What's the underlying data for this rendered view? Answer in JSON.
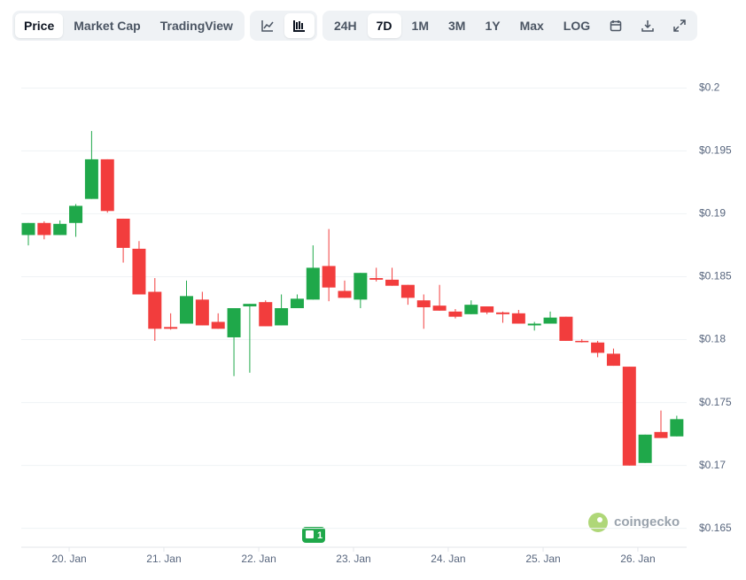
{
  "toolbar": {
    "views": [
      "Price",
      "Market Cap",
      "TradingView"
    ],
    "active_view": 0,
    "ranges": [
      "24H",
      "7D",
      "1M",
      "3M",
      "1Y",
      "Max",
      "LOG"
    ],
    "active_range": 1
  },
  "chart_data": {
    "type": "candlestick",
    "up_color": "#1fa84a",
    "down_color": "#f23d3d",
    "open": [
      0.18831,
      0.18927,
      0.18831,
      0.18927,
      0.19118,
      0.19433,
      0.18961,
      0.18722,
      0.1838,
      0.181,
      0.18127,
      0.18318,
      0.18141,
      0.18018,
      0.18264,
      0.18298,
      0.18113,
      0.1825,
      0.18318,
      0.18585,
      0.18387,
      0.18318,
      0.18489,
      0.18476,
      0.18435,
      0.18312,
      0.1827,
      0.18223,
      0.18202,
      0.18264,
      0.18216,
      0.18209,
      0.18113,
      0.18127,
      0.18182,
      0.1799,
      0.17977,
      0.17888,
      0.17785,
      0.1702,
      0.17266,
      0.17231
    ],
    "high": [
      0.18927,
      0.1894,
      0.18947,
      0.19077,
      0.19658,
      0.19433,
      0.18961,
      0.18783,
      0.18489,
      0.18209,
      0.18469,
      0.1838,
      0.18209,
      0.1825,
      0.18284,
      0.18312,
      0.18359,
      0.18359,
      0.18749,
      0.18879,
      0.18469,
      0.1853,
      0.18571,
      0.18571,
      0.18435,
      0.18359,
      0.18435,
      0.18243,
      0.18312,
      0.18264,
      0.18223,
      0.18236,
      0.18141,
      0.18223,
      0.18182,
      0.18004,
      0.1799,
      0.17929,
      0.17785,
      0.17245,
      0.17436,
      0.17395
    ],
    "low": [
      0.18749,
      0.18797,
      0.18831,
      0.18817,
      0.19118,
      0.19009,
      0.18612,
      0.18359,
      0.1799,
      0.18079,
      0.18127,
      0.18113,
      0.18086,
      0.1771,
      0.17737,
      0.18106,
      0.18113,
      0.1825,
      0.18318,
      0.18305,
      0.18332,
      0.1825,
      0.18462,
      0.18428,
      0.18277,
      0.18086,
      0.1823,
      0.18168,
      0.18202,
      0.18202,
      0.18134,
      0.18127,
      0.18072,
      0.18127,
      0.1799,
      0.17977,
      0.1786,
      0.17792,
      0.16999,
      0.1702,
      0.17218,
      0.17231
    ],
    "close": [
      0.18927,
      0.18831,
      0.1892,
      0.19063,
      0.19433,
      0.19022,
      0.18729,
      0.18359,
      0.18086,
      0.18086,
      0.18346,
      0.18113,
      0.18086,
      0.1825,
      0.18284,
      0.18106,
      0.1825,
      0.18325,
      0.18571,
      0.18414,
      0.18332,
      0.1853,
      0.18476,
      0.18428,
      0.18332,
      0.18257,
      0.1823,
      0.18182,
      0.18277,
      0.18216,
      0.18202,
      0.18127,
      0.18127,
      0.18175,
      0.1799,
      0.17983,
      0.17895,
      0.17792,
      0.16999,
      0.17245,
      0.17218,
      0.17368
    ],
    "ylim": [
      0.1635,
      0.2015
    ],
    "yticks": [
      {
        "value": 0.2,
        "label": "$0.2"
      },
      {
        "value": 0.195,
        "label": "$0.195"
      },
      {
        "value": 0.19,
        "label": "$0.19"
      },
      {
        "value": 0.185,
        "label": "$0.185"
      },
      {
        "value": 0.18,
        "label": "$0.18"
      },
      {
        "value": 0.175,
        "label": "$0.175"
      },
      {
        "value": 0.17,
        "label": "$0.17"
      },
      {
        "value": 0.165,
        "label": "$0.165"
      }
    ],
    "xticks": [
      {
        "value": 2.58,
        "label": "20. Jan"
      },
      {
        "value": 8.57,
        "label": "21. Jan"
      },
      {
        "value": 14.57,
        "label": "22. Jan"
      },
      {
        "value": 20.56,
        "label": "23. Jan"
      },
      {
        "value": 26.55,
        "label": "24. Jan"
      },
      {
        "value": 32.55,
        "label": "25. Jan"
      },
      {
        "value": 38.54,
        "label": "26. Jan"
      }
    ],
    "grid": true,
    "annotations": [
      {
        "text": "1"
      }
    ],
    "watermark": "coingecko"
  }
}
